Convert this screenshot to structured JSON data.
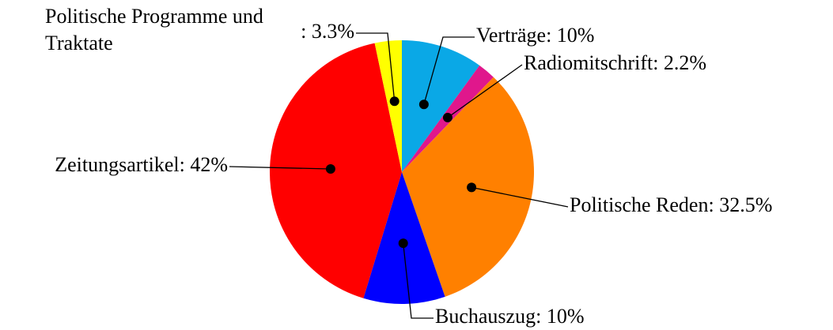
{
  "chart_data": {
    "type": "pie",
    "categories": [
      "Verträge",
      "Radiomitschrift",
      "Politische Reden",
      "Buchauszug",
      "Zeitungsartikel",
      "Politische Programme und Traktate"
    ],
    "values": [
      10,
      2.2,
      32.5,
      10,
      42,
      3.3
    ],
    "value_labels": [
      ": 10%",
      ": 2.2%",
      ": 32.5%",
      ": 10%",
      ": 42%",
      ": 3.3%"
    ],
    "colors": [
      "#0aa8e6",
      "#e0178c",
      "#ff8000",
      "#0000ff",
      "#ff0000",
      "#ffff00"
    ]
  }
}
